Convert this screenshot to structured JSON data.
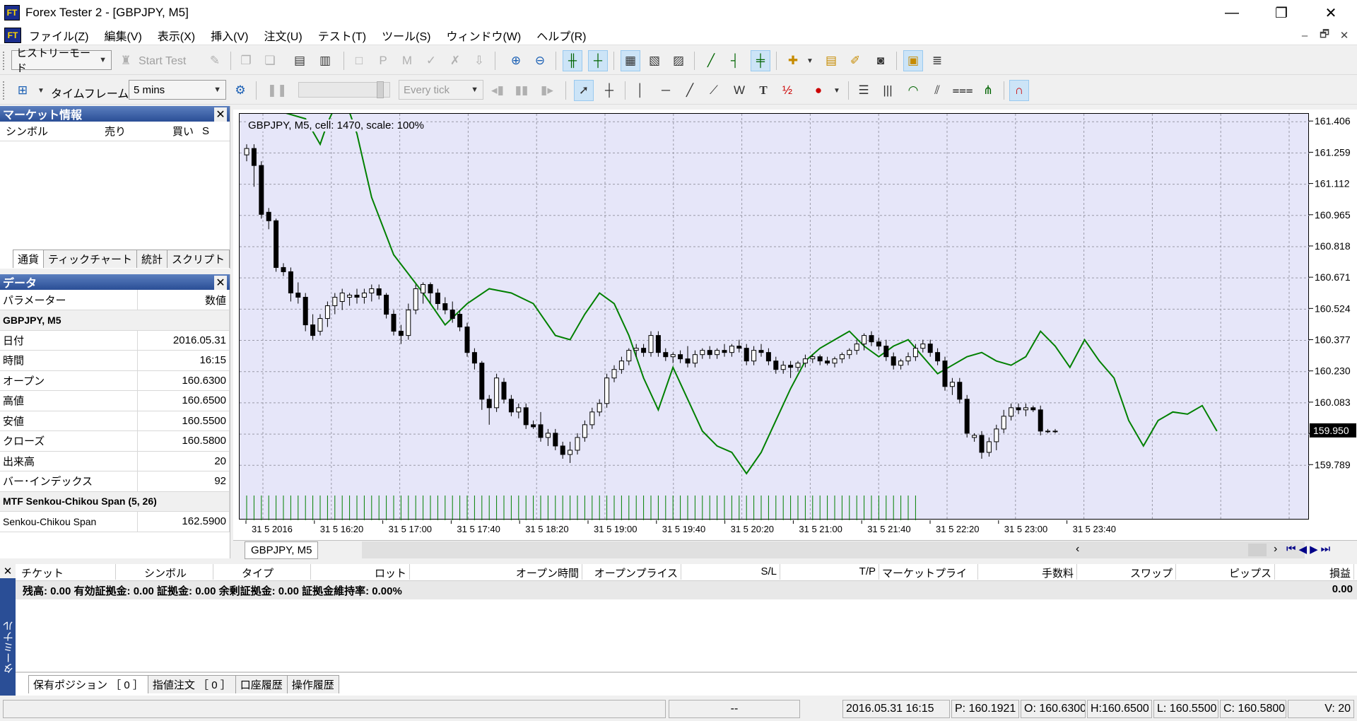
{
  "window": {
    "title": "Forex Tester 2 - [GBPJPY, M5]",
    "app_icon": "FT"
  },
  "menu": [
    "ファイル(Z)",
    "編集(V)",
    "表示(X)",
    "挿入(V)",
    "注文(U)",
    "テスト(T)",
    "ツール(S)",
    "ウィンドウ(W)",
    "ヘルプ(R)"
  ],
  "toolbar1": {
    "mode": "ヒストリーモード",
    "start_test": "Start Test"
  },
  "toolbar2": {
    "timeframe_label": "タイムフレーム:",
    "timeframe_value": "5 mins",
    "tick_mode": "Every tick",
    "text_tool": "T"
  },
  "market_panel": {
    "title": "マーケット情報",
    "columns": [
      "シンボル",
      "売り",
      "買い",
      "S"
    ],
    "tabs": [
      "通貨",
      "ティックチャート",
      "統計",
      "スクリプト"
    ]
  },
  "data_panel": {
    "title": "データ",
    "header": [
      "パラメーター",
      "数値"
    ],
    "group1": "GBPJPY, M5",
    "rows": [
      {
        "label": "日付",
        "value": "2016.05.31"
      },
      {
        "label": "時間",
        "value": "16:15"
      },
      {
        "label": "オープン",
        "value": "160.6300"
      },
      {
        "label": "高値",
        "value": "160.6500"
      },
      {
        "label": "安値",
        "value": "160.5500"
      },
      {
        "label": "クローズ",
        "value": "160.5800"
      },
      {
        "label": "出来高",
        "value": "20"
      },
      {
        "label": "バー･インデックス",
        "value": "92"
      }
    ],
    "group2": "MTF Senkou-Chikou Span (5, 26)",
    "indicator": {
      "label": "Senkou-Chikou Span",
      "value": "162.5900"
    }
  },
  "chart": {
    "label": "GBPJPY, M5, cell: 1470, scale: 100%",
    "tab": "GBPJPY, M5",
    "current_price": "159.950",
    "colors": {
      "background": "#e6e6f9",
      "line": "#008000",
      "bull": "#ffffff",
      "bear": "#000000"
    }
  },
  "chart_data": {
    "type": "candlestick",
    "symbol": "GBPJPY",
    "timeframe": "M5",
    "y_ticks": [
      "161.406",
      "161.259",
      "161.112",
      "160.965",
      "160.818",
      "160.671",
      "160.524",
      "160.377",
      "160.230",
      "160.083",
      "159.936",
      "159.789"
    ],
    "x_ticks": [
      "31 5 2016",
      "31 5 16:20",
      "31 5 17:00",
      "31 5 17:40",
      "31 5 18:20",
      "31 5 19:00",
      "31 5 19:40",
      "31 5 20:20",
      "31 5 21:00",
      "31 5 21:40",
      "31 5 22:20",
      "31 5 23:00",
      "31 5 23:40"
    ],
    "ylim": [
      159.75,
      161.43
    ],
    "current_price": 159.95,
    "candles": [
      [
        161.25,
        161.3,
        161.22,
        161.28
      ],
      [
        161.28,
        161.3,
        161.1,
        161.2
      ],
      [
        161.2,
        161.22,
        160.95,
        160.97
      ],
      [
        160.98,
        161.0,
        160.9,
        160.94
      ],
      [
        160.94,
        160.95,
        160.7,
        160.72
      ],
      [
        160.72,
        160.74,
        160.68,
        160.7
      ],
      [
        160.7,
        160.72,
        160.56,
        160.6
      ],
      [
        160.6,
        160.65,
        160.55,
        160.58
      ],
      [
        160.58,
        160.6,
        160.42,
        160.45
      ],
      [
        160.45,
        160.5,
        160.38,
        160.4
      ],
      [
        160.42,
        160.5,
        160.4,
        160.48
      ],
      [
        160.48,
        160.56,
        160.44,
        160.54
      ],
      [
        160.54,
        160.6,
        160.5,
        160.58
      ],
      [
        160.56,
        160.62,
        160.52,
        160.6
      ],
      [
        160.58,
        160.6,
        160.54,
        160.59
      ],
      [
        160.59,
        160.62,
        160.55,
        160.58
      ],
      [
        160.58,
        160.62,
        160.55,
        160.6
      ],
      [
        160.6,
        160.64,
        160.56,
        160.62
      ],
      [
        160.62,
        160.64,
        160.57,
        160.59
      ],
      [
        160.59,
        160.6,
        160.48,
        160.5
      ],
      [
        160.5,
        160.52,
        160.4,
        160.42
      ],
      [
        160.42,
        160.45,
        160.36,
        160.4
      ],
      [
        160.4,
        160.55,
        160.38,
        160.52
      ],
      [
        160.52,
        160.64,
        160.5,
        160.62
      ],
      [
        160.6,
        160.65,
        160.55,
        160.64
      ],
      [
        160.64,
        160.65,
        160.55,
        160.6
      ],
      [
        160.6,
        160.62,
        160.52,
        160.55
      ],
      [
        160.55,
        160.58,
        160.5,
        160.52
      ],
      [
        160.52,
        160.56,
        160.46,
        160.48
      ],
      [
        160.5,
        160.52,
        160.42,
        160.44
      ],
      [
        160.44,
        160.46,
        160.3,
        160.32
      ],
      [
        160.32,
        160.34,
        160.24,
        160.27
      ],
      [
        160.27,
        160.28,
        160.05,
        160.1
      ],
      [
        160.1,
        160.12,
        159.98,
        160.06
      ],
      [
        160.06,
        160.22,
        160.04,
        160.2
      ],
      [
        160.18,
        160.2,
        160.08,
        160.1
      ],
      [
        160.1,
        160.12,
        160.02,
        160.04
      ],
      [
        160.04,
        160.08,
        160.01,
        160.06
      ],
      [
        160.06,
        160.08,
        159.96,
        159.98
      ],
      [
        159.98,
        160.0,
        159.96,
        159.97
      ],
      [
        159.98,
        160.04,
        159.9,
        159.92
      ],
      [
        159.92,
        159.96,
        159.88,
        159.94
      ],
      [
        159.94,
        159.96,
        159.86,
        159.88
      ],
      [
        159.88,
        159.9,
        159.82,
        159.84
      ],
      [
        159.84,
        159.9,
        159.8,
        159.86
      ],
      [
        159.86,
        159.94,
        159.84,
        159.92
      ],
      [
        159.92,
        160.0,
        159.9,
        159.98
      ],
      [
        159.98,
        160.06,
        159.96,
        160.04
      ],
      [
        160.04,
        160.1,
        160.02,
        160.08
      ],
      [
        160.08,
        160.22,
        160.06,
        160.2
      ],
      [
        160.2,
        160.26,
        160.18,
        160.24
      ],
      [
        160.24,
        160.3,
        160.22,
        160.28
      ],
      [
        160.28,
        160.34,
        160.26,
        160.33
      ],
      [
        160.33,
        160.36,
        160.3,
        160.34
      ],
      [
        160.34,
        160.36,
        160.3,
        160.32
      ],
      [
        160.32,
        160.42,
        160.3,
        160.4
      ],
      [
        160.4,
        160.42,
        160.3,
        160.32
      ],
      [
        160.32,
        160.34,
        160.28,
        160.3
      ],
      [
        160.3,
        160.32,
        160.27,
        160.31
      ],
      [
        160.31,
        160.33,
        160.27,
        160.29
      ],
      [
        160.29,
        160.35,
        160.25,
        160.27
      ],
      [
        160.27,
        160.33,
        160.25,
        160.31
      ],
      [
        160.31,
        160.34,
        160.29,
        160.33
      ],
      [
        160.33,
        160.35,
        160.29,
        160.31
      ],
      [
        160.31,
        160.34,
        160.29,
        160.33
      ],
      [
        160.33,
        160.36,
        160.3,
        160.32
      ],
      [
        160.32,
        160.36,
        160.3,
        160.35
      ],
      [
        160.35,
        160.38,
        160.32,
        160.34
      ],
      [
        160.34,
        160.36,
        160.26,
        160.28
      ],
      [
        160.28,
        160.35,
        160.26,
        160.33
      ],
      [
        160.33,
        160.36,
        160.3,
        160.32
      ],
      [
        160.32,
        160.34,
        160.26,
        160.28
      ],
      [
        160.28,
        160.3,
        160.22,
        160.24
      ],
      [
        160.24,
        160.28,
        160.22,
        160.26
      ],
      [
        160.26,
        160.28,
        160.2,
        160.25
      ],
      [
        160.25,
        160.28,
        160.23,
        160.27
      ],
      [
        160.27,
        160.31,
        160.25,
        160.29
      ],
      [
        160.29,
        160.31,
        160.27,
        160.3
      ],
      [
        160.3,
        160.31,
        160.26,
        160.28
      ],
      [
        160.28,
        160.3,
        160.26,
        160.27
      ],
      [
        160.27,
        160.3,
        160.25,
        160.29
      ],
      [
        160.29,
        160.32,
        160.27,
        160.31
      ],
      [
        160.31,
        160.34,
        160.29,
        160.33
      ],
      [
        160.33,
        160.38,
        160.31,
        160.36
      ],
      [
        160.36,
        160.41,
        160.33,
        160.4
      ],
      [
        160.4,
        160.42,
        160.35,
        160.37
      ],
      [
        160.37,
        160.39,
        160.33,
        160.35
      ],
      [
        160.35,
        160.38,
        160.28,
        160.3
      ],
      [
        160.3,
        160.32,
        160.24,
        160.26
      ],
      [
        160.26,
        160.29,
        160.24,
        160.28
      ],
      [
        160.28,
        160.32,
        160.26,
        160.3
      ],
      [
        160.3,
        160.36,
        160.28,
        160.34
      ],
      [
        160.34,
        160.38,
        160.32,
        160.36
      ],
      [
        160.36,
        160.38,
        160.3,
        160.32
      ],
      [
        160.32,
        160.34,
        160.26,
        160.28
      ],
      [
        160.28,
        160.3,
        160.14,
        160.16
      ],
      [
        160.16,
        160.2,
        160.12,
        160.18
      ],
      [
        160.18,
        160.2,
        160.08,
        160.1
      ],
      [
        160.1,
        160.12,
        159.92,
        159.94
      ],
      [
        159.92,
        159.94,
        159.9,
        159.93
      ],
      [
        159.93,
        159.95,
        159.82,
        159.85
      ],
      [
        159.85,
        159.92,
        159.83,
        159.9
      ],
      [
        159.9,
        159.98,
        159.86,
        159.96
      ],
      [
        159.96,
        160.05,
        159.94,
        160.02
      ],
      [
        160.02,
        160.08,
        160.0,
        160.06
      ],
      [
        160.06,
        160.08,
        160.03,
        160.05
      ],
      [
        160.05,
        160.08,
        160.02,
        160.06
      ],
      [
        160.06,
        160.07,
        160.04,
        160.05
      ],
      [
        160.05,
        160.07,
        159.93,
        159.95
      ],
      [
        159.95,
        159.96,
        159.94,
        159.95
      ],
      [
        159.95,
        159.96,
        159.94,
        159.95
      ]
    ],
    "senkou_chikou_span": [
      [
        0,
        161.5
      ],
      [
        8,
        161.42
      ],
      [
        10,
        161.3
      ],
      [
        11,
        161.4
      ],
      [
        13,
        161.55
      ],
      [
        15,
        161.35
      ],
      [
        17,
        161.05
      ],
      [
        20,
        160.78
      ],
      [
        24,
        160.6
      ],
      [
        27,
        160.45
      ],
      [
        30,
        160.55
      ],
      [
        33,
        160.62
      ],
      [
        36,
        160.6
      ],
      [
        39,
        160.55
      ],
      [
        42,
        160.4
      ],
      [
        44,
        160.38
      ],
      [
        46,
        160.5
      ],
      [
        48,
        160.6
      ],
      [
        50,
        160.55
      ],
      [
        52,
        160.4
      ],
      [
        54,
        160.2
      ],
      [
        56,
        160.05
      ],
      [
        58,
        160.25
      ],
      [
        60,
        160.1
      ],
      [
        62,
        159.95
      ],
      [
        64,
        159.88
      ],
      [
        66,
        159.85
      ],
      [
        68,
        159.75
      ],
      [
        70,
        159.85
      ],
      [
        72,
        160.0
      ],
      [
        74,
        160.15
      ],
      [
        76,
        160.28
      ],
      [
        78,
        160.34
      ],
      [
        80,
        160.38
      ],
      [
        82,
        160.42
      ],
      [
        84,
        160.35
      ],
      [
        86,
        160.3
      ],
      [
        88,
        160.35
      ],
      [
        90,
        160.38
      ],
      [
        92,
        160.3
      ],
      [
        94,
        160.22
      ],
      [
        96,
        160.26
      ],
      [
        98,
        160.3
      ],
      [
        100,
        160.32
      ],
      [
        102,
        160.28
      ],
      [
        104,
        160.26
      ],
      [
        106,
        160.3
      ],
      [
        108,
        160.42
      ],
      [
        110,
        160.35
      ],
      [
        112,
        160.25
      ],
      [
        114,
        160.38
      ],
      [
        116,
        160.28
      ],
      [
        118,
        160.2
      ],
      [
        120,
        160.0
      ],
      [
        122,
        159.88
      ],
      [
        124,
        160.0
      ],
      [
        126,
        160.04
      ],
      [
        128,
        160.03
      ],
      [
        130,
        160.07
      ],
      [
        132,
        159.95
      ]
    ],
    "volume_bars": 92
  },
  "terminal": {
    "columns": [
      "チケット",
      "シンボル",
      "タイプ",
      "ロット",
      "オープン時間",
      "オープンプライス",
      "S/L",
      "T/P",
      "マーケットプライス",
      "手数料",
      "スワップ",
      "ピップス",
      "損益"
    ],
    "summary": "残高: 0.00 有効証拠金: 0.00 証拠金: 0.00 余剰証拠金: 0.00 証拠金維持率: 0.00%",
    "summary_value": "0.00",
    "side_label": "ターミナル",
    "tabs": [
      "保有ポジション ［ 0 ］",
      "指値注文 ［ 0 ］",
      "口座履歴",
      "操作履歴"
    ]
  },
  "status": {
    "cells": [
      "--",
      "2016.05.31 16:15",
      "P: 160.1921",
      "O: 160.6300",
      "H:160.6500",
      "L: 160.5500",
      "C: 160.5800",
      "V: 20"
    ]
  }
}
